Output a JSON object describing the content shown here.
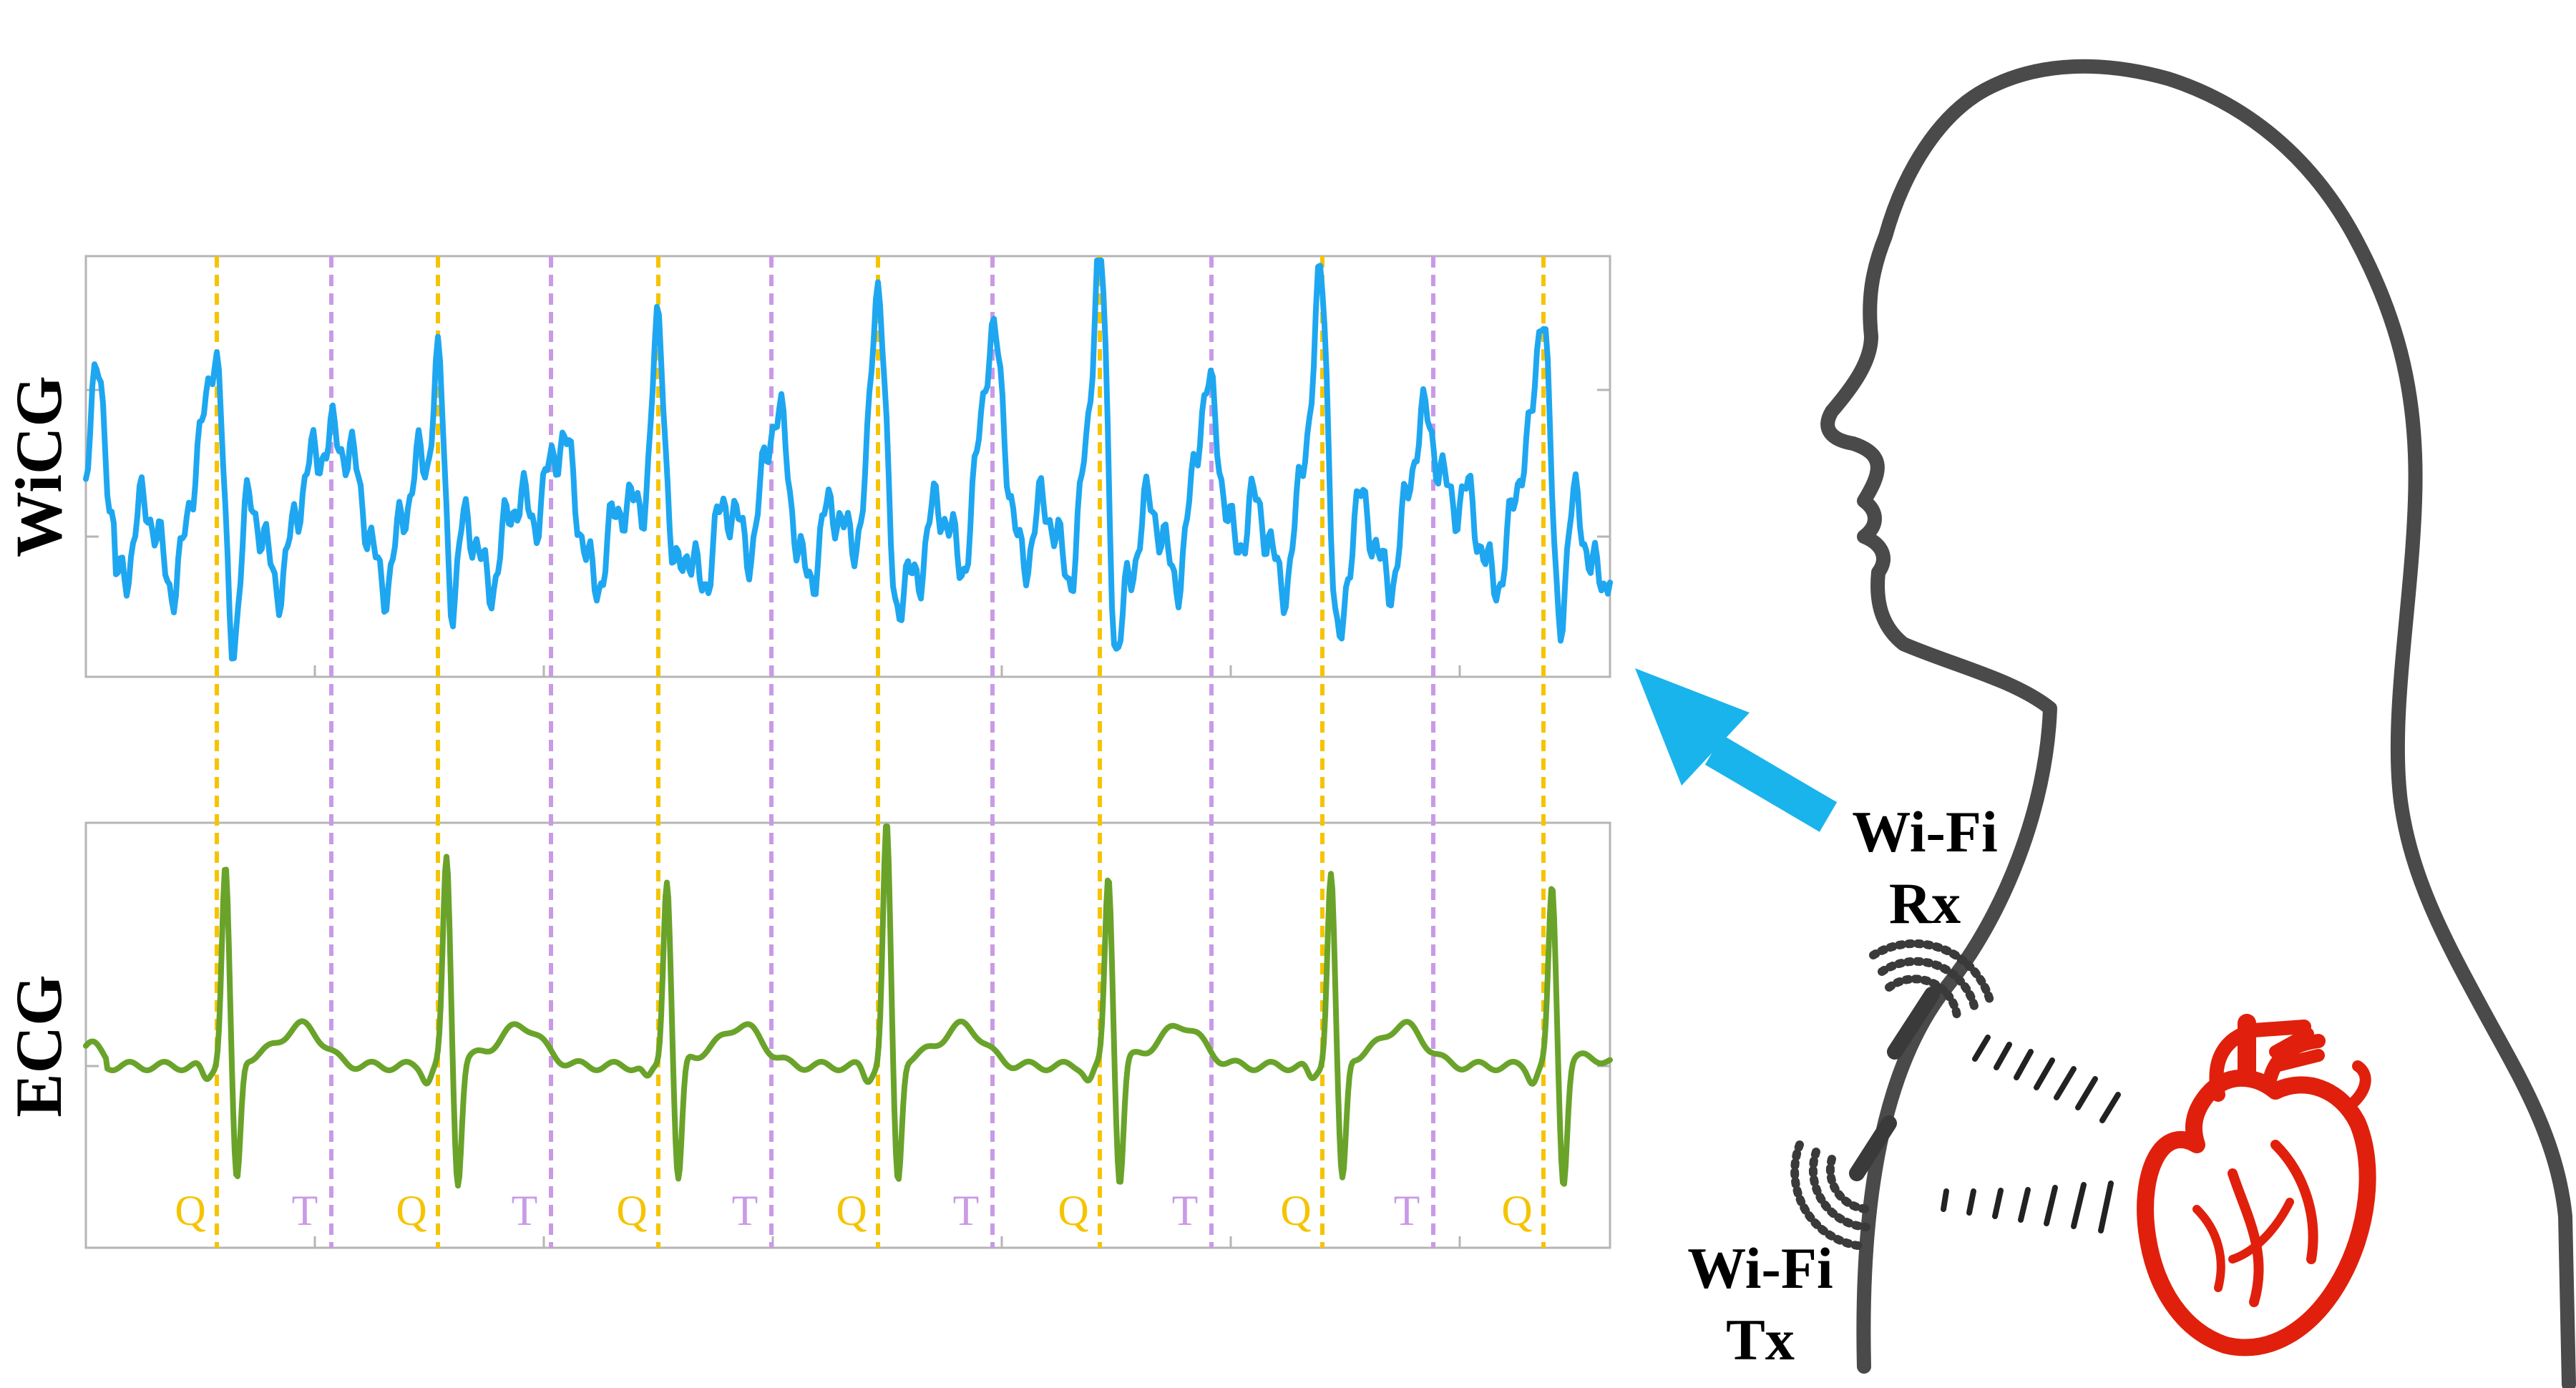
{
  "panels": {
    "wicg": {
      "ylabel": "WiCG"
    },
    "ecg": {
      "ylabel": "ECG"
    }
  },
  "markers": {
    "q_label": "Q",
    "t_label": "T",
    "q_color": "#f5c400",
    "t_color": "#c99ae6"
  },
  "devices": {
    "rx": {
      "line1": "Wi-Fi",
      "line2": "Rx"
    },
    "tx": {
      "line1": "Wi-Fi",
      "line2": "Tx"
    }
  },
  "colors": {
    "wicg_signal": "#1ea7f0",
    "ecg_signal": "#6aa32a",
    "arrow": "#19b4ec",
    "heart": "#e0200c",
    "silhouette": "#4a4a4a",
    "frame": "#b5b5b5"
  }
}
